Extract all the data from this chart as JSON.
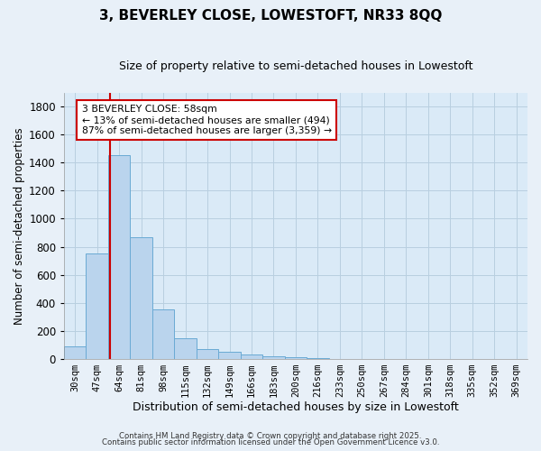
{
  "title": "3, BEVERLEY CLOSE, LOWESTOFT, NR33 8QQ",
  "subtitle": "Size of property relative to semi-detached houses in Lowestoft",
  "xlabel": "Distribution of semi-detached houses by size in Lowestoft",
  "ylabel": "Number of semi-detached properties",
  "bar_labels": [
    "30sqm",
    "47sqm",
    "64sqm",
    "81sqm",
    "98sqm",
    "115sqm",
    "132sqm",
    "149sqm",
    "166sqm",
    "183sqm",
    "200sqm",
    "216sqm",
    "233sqm",
    "250sqm",
    "267sqm",
    "284sqm",
    "301sqm",
    "318sqm",
    "335sqm",
    "352sqm",
    "369sqm"
  ],
  "bar_values": [
    90,
    755,
    1450,
    870,
    355,
    150,
    70,
    50,
    30,
    20,
    10,
    5,
    3,
    2,
    2,
    1,
    1,
    0,
    0,
    0,
    1
  ],
  "bar_color": "#bad4ed",
  "bar_edge_color": "#6aaad4",
  "grid_color": "#b8cfe0",
  "plot_bg_color": "#daeaf7",
  "fig_bg_color": "#e8f0f8",
  "vline_color": "#cc0000",
  "vline_x": 1.575,
  "annotation_title": "3 BEVERLEY CLOSE: 58sqm",
  "annotation_line1": "← 13% of semi-detached houses are smaller (494)",
  "annotation_line2": "87% of semi-detached houses are larger (3,359) →",
  "annotation_box_facecolor": "#ffffff",
  "annotation_box_edgecolor": "#cc0000",
  "ylim": [
    0,
    1900
  ],
  "yticks": [
    0,
    200,
    400,
    600,
    800,
    1000,
    1200,
    1400,
    1600,
    1800
  ],
  "footer1": "Contains HM Land Registry data © Crown copyright and database right 2025.",
  "footer2": "Contains public sector information licensed under the Open Government Licence v3.0."
}
